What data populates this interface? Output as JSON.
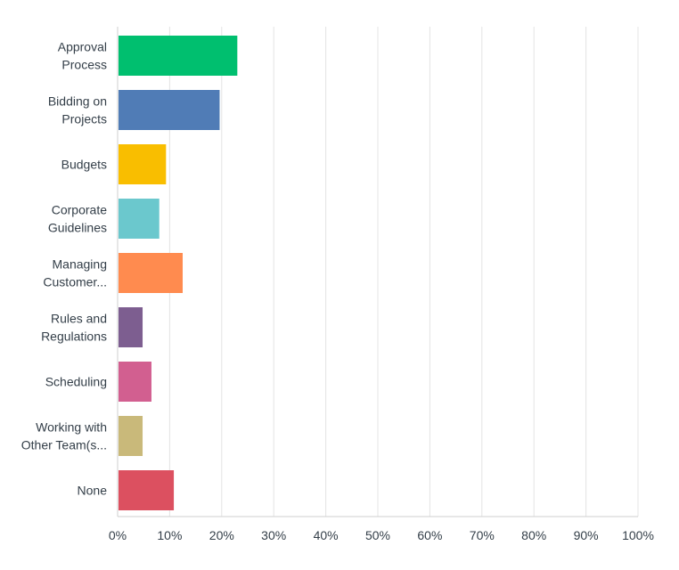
{
  "chart_data": {
    "type": "bar",
    "orientation": "horizontal",
    "title": "",
    "xlabel": "",
    "ylabel": "",
    "categories": [
      [
        "Approval",
        "Process"
      ],
      [
        "Bidding on",
        "Projects"
      ],
      [
        "Budgets"
      ],
      [
        "Corporate",
        "Guidelines"
      ],
      [
        "Managing",
        "Customer..."
      ],
      [
        "Rules and",
        "Regulations"
      ],
      [
        "Scheduling"
      ],
      [
        "Working with",
        "Other Team(s..."
      ],
      [
        "None"
      ]
    ],
    "values": [
      23,
      19.6,
      9.3,
      8,
      12.5,
      4.8,
      6.5,
      4.8,
      10.8
    ],
    "colors": [
      "#00bf6f",
      "#507cb6",
      "#f9be00",
      "#6bc8cd",
      "#ff8b4f",
      "#7d5e90",
      "#d25f90",
      "#c9b97a",
      "#dc5060"
    ],
    "x_ticks": [
      "0%",
      "10%",
      "20%",
      "30%",
      "40%",
      "50%",
      "60%",
      "70%",
      "80%",
      "90%",
      "100%"
    ],
    "xlim": [
      0,
      100
    ],
    "grid": true,
    "legend": "none"
  }
}
